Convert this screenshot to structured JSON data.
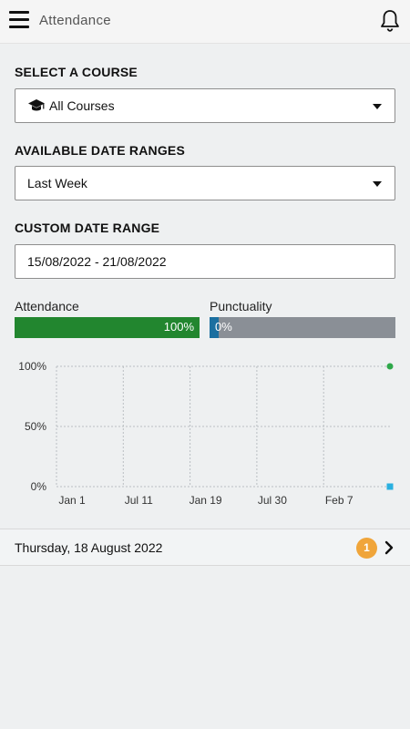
{
  "header": {
    "title": "Attendance",
    "menu_icon": "hamburger-menu-icon",
    "notification_icon": "bell-icon"
  },
  "course": {
    "label": "SELECT A COURSE",
    "selected": "All Courses",
    "icon": "graduation-cap-icon"
  },
  "date_ranges": {
    "label": "AVAILABLE DATE RANGES",
    "selected": "Last Week"
  },
  "custom_range": {
    "label": "CUSTOM DATE RANGE",
    "value": "15/08/2022 - 21/08/2022"
  },
  "metrics": {
    "attendance": {
      "label": "Attendance",
      "value": 100,
      "value_text": "100%",
      "color": "#22862f"
    },
    "punctuality": {
      "label": "Punctuality",
      "value": 0,
      "value_text": "0%",
      "color": "#1b6fa0",
      "track_color": "#8a8f96"
    }
  },
  "chart_data": {
    "type": "line",
    "y_ticks": [
      "100%",
      "50%",
      "0%"
    ],
    "x_ticks": [
      "Jan 1",
      "Jul 11",
      "Jan 19",
      "Jul 30",
      "Feb 7"
    ],
    "ylim": [
      0,
      100
    ],
    "grid": true,
    "series": [
      {
        "color": "#2ea84a",
        "marker": "circle",
        "points": [
          {
            "x": "Feb 7+",
            "y": 100
          }
        ]
      },
      {
        "color": "#2ab0e0",
        "marker": "square",
        "points": [
          {
            "x": "Feb 7+",
            "y": 0
          }
        ]
      }
    ]
  },
  "day_entry": {
    "date": "Thursday, 18 August 2022",
    "count": "1"
  }
}
